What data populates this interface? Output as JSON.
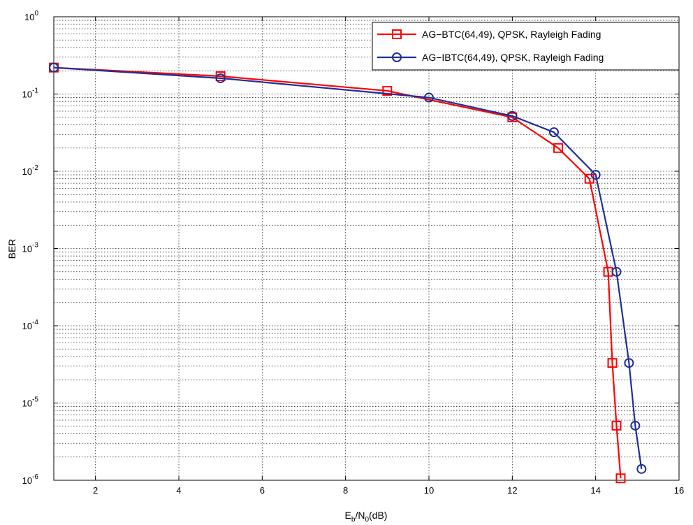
{
  "chart_data": {
    "type": "line",
    "xlabel": "E_b/N_0(dB)",
    "ylabel": "BER",
    "xlim": [
      1,
      16
    ],
    "ylim": [
      1e-06,
      1
    ],
    "yscale": "log",
    "grid": true,
    "legend_position": "top-right",
    "x_ticks": [
      "2",
      "4",
      "6",
      "8",
      "10",
      "12",
      "14",
      "16"
    ],
    "y_ticks": [
      {
        "base": "10",
        "exp": "0"
      },
      {
        "base": "10",
        "exp": "-1"
      },
      {
        "base": "10",
        "exp": "-2"
      },
      {
        "base": "10",
        "exp": "-3"
      },
      {
        "base": "10",
        "exp": "-4"
      },
      {
        "base": "10",
        "exp": "-5"
      },
      {
        "base": "10",
        "exp": "-6"
      }
    ],
    "series": [
      {
        "name": "AG−BTC(64,49), QPSK, Rayleigh Fading",
        "color": "#ff0000",
        "marker": "square",
        "x": [
          1,
          5,
          9,
          12,
          13.1,
          13.85,
          14.3,
          14.4,
          14.5,
          14.6
        ],
        "y": [
          0.22,
          0.17,
          0.11,
          0.05,
          0.02,
          0.008,
          0.0005,
          3.3e-05,
          5.1e-06,
          1.06e-06
        ]
      },
      {
        "name": "AG−IBTC(64,49), QPSK, Rayleigh Fading",
        "color": "#1f2f9a",
        "marker": "circle",
        "x": [
          1,
          5,
          10,
          12,
          13,
          14,
          14.5,
          14.8,
          14.95,
          15.1
        ],
        "y": [
          0.22,
          0.16,
          0.09,
          0.052,
          0.032,
          0.009,
          0.0005,
          3.3e-05,
          5.1e-06,
          1.4e-06
        ]
      }
    ]
  }
}
